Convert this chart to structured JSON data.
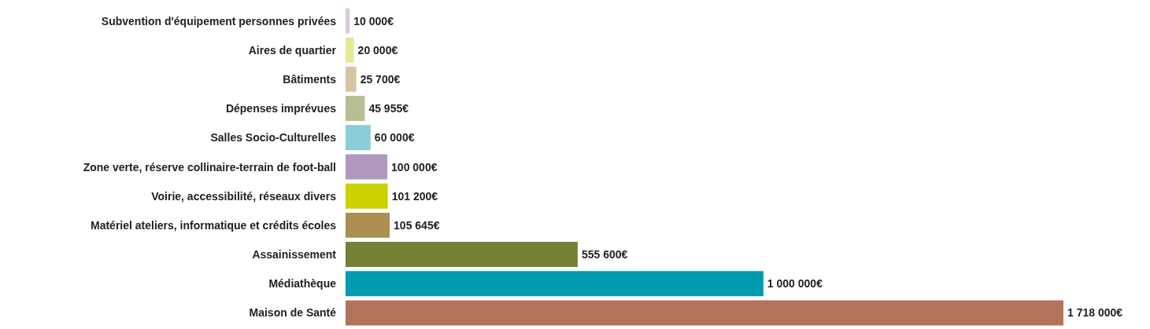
{
  "chart_data": {
    "type": "bar",
    "orientation": "horizontal",
    "categories": [
      "Subvention d'équipement personnes privées",
      "Aires de quartier",
      "Bâtiments",
      "Dépenses imprévues",
      "Salles Socio-Culturelles",
      "Zone verte, réserve collinaire-terrain de foot-ball",
      "Voirie, accessibilité, réseaux divers",
      "Matériel ateliers, informatique et crédits écoles",
      "Assainissement",
      "Médiathèque",
      "Maison de Santé"
    ],
    "values": [
      10000,
      20000,
      25700,
      45955,
      60000,
      100000,
      101200,
      105645,
      555600,
      1000000,
      1718000
    ],
    "value_labels": [
      "10 000€",
      "20 000€",
      "25 700€",
      "45 955€",
      "60 000€",
      "100 000€",
      "101 200€",
      "105 645€",
      "555 600€",
      "1 000 000€",
      "1 718 000€"
    ],
    "colors": [
      "#d8c8e0",
      "#e6e897",
      "#d7c5a2",
      "#b8be93",
      "#89cdd8",
      "#ae98be",
      "#ccd200",
      "#ab8f50",
      "#748234",
      "#009bb0",
      "#b3735a"
    ],
    "xlim": [
      0,
      1718000
    ]
  }
}
